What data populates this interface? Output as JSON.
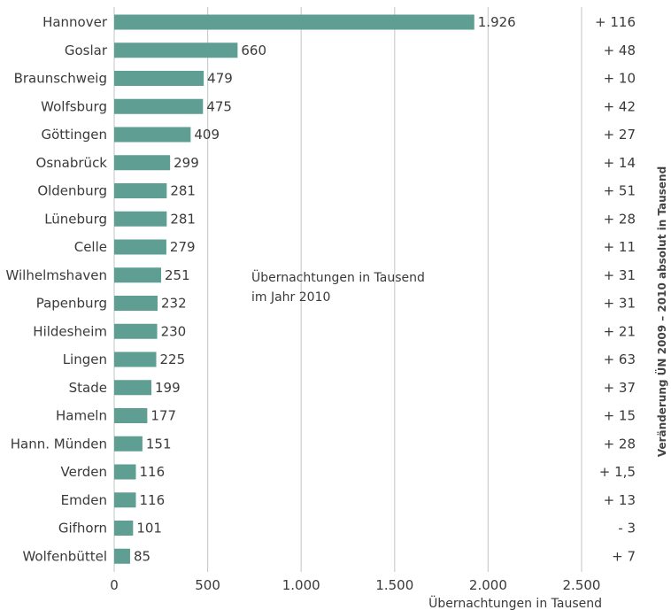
{
  "chart_data": {
    "type": "bar",
    "orientation": "horizontal",
    "categories": [
      "Hannover",
      "Goslar",
      "Braunschweig",
      "Wolfsburg",
      "Göttingen",
      "Osnabrück",
      "Oldenburg",
      "Lüneburg",
      "Celle",
      "Wilhelmshaven",
      "Papenburg",
      "Hildesheim",
      "Lingen",
      "Stade",
      "Hameln",
      "Hann. Münden",
      "Verden",
      "Emden",
      "Gifhorn",
      "Wolfenbüttel"
    ],
    "values": [
      1926,
      660,
      479,
      475,
      409,
      299,
      281,
      281,
      279,
      251,
      232,
      230,
      225,
      199,
      177,
      151,
      116,
      116,
      101,
      85
    ],
    "value_labels": [
      "1.926",
      "660",
      "479",
      "475",
      "409",
      "299",
      "281",
      "281",
      "279",
      "251",
      "232",
      "230",
      "225",
      "199",
      "177",
      "151",
      "116",
      "116",
      "101",
      "85"
    ],
    "changes": [
      "+ 116",
      "+ 48",
      "+ 10",
      "+ 42",
      "+ 27",
      "+ 14",
      "+ 51",
      "+ 28",
      "+ 11",
      "+ 31",
      "+ 31",
      "+ 21",
      "+ 63",
      "+ 37",
      "+ 15",
      "+ 28",
      "+ 1,5",
      "+ 13",
      "- 3",
      "+ 7"
    ],
    "xlim": [
      0,
      2500
    ],
    "xticks": [
      0,
      500,
      1000,
      1500,
      2000,
      2500
    ],
    "xtick_labels": [
      "0",
      "500",
      "1.000",
      "1.500",
      "2.000",
      "2.500"
    ],
    "xlabel": "Übernachtungen in Tausend",
    "annotation": [
      "Übernachtungen in Tausend",
      "im Jahr 2010"
    ],
    "right_axis_label": "Veränderung ÜN 2009 – 2010 absolut in Tausend",
    "grid": true,
    "colors": {
      "bar": "#5e9e93",
      "grid": "#c8cfcd"
    }
  }
}
